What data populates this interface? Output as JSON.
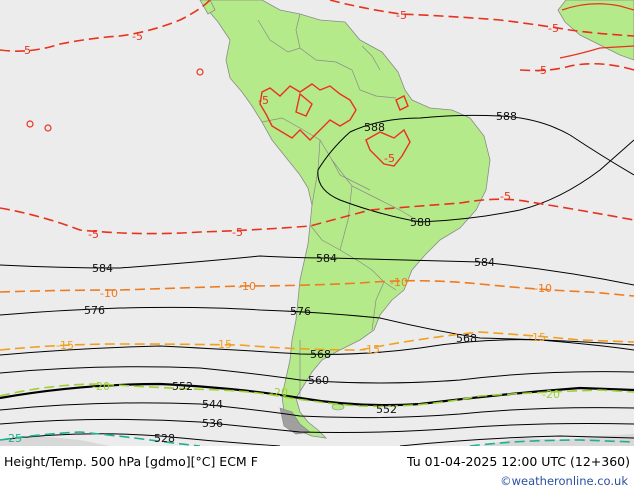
{
  "map": {
    "colors": {
      "ocean": "#ececec",
      "land": "#b5ea8a",
      "border": "#9a9a9a",
      "height_line": "#000000",
      "temp_minus5": "#e8321e",
      "temp_minus10": "#f07a1e",
      "temp_minus15": "#f0a020",
      "temp_minus20": "#9cd235",
      "temp_minus25": "#20b090"
    },
    "height_labels": [
      "588",
      "588",
      "588",
      "584",
      "584",
      "584",
      "576",
      "576",
      "568",
      "568",
      "560",
      "552",
      "552",
      "544",
      "536",
      "528"
    ],
    "temp_labels": [
      "-5",
      "-5",
      "-5",
      "-5",
      "-5",
      "-5",
      "-5",
      "-5",
      "-5",
      "-5",
      "-10",
      "-10",
      "-10",
      "-10",
      "-15",
      "-15",
      "-15",
      "-15",
      "-20",
      "-20",
      "-20",
      "-25"
    ]
  },
  "footer": {
    "title": "Height/Temp. 500 hPa [gdmo][°C] ECM F",
    "valid_time": "Tu 01-04-2025 12:00 UTC (12+360)",
    "credit": "©weatheronline.co.uk"
  }
}
